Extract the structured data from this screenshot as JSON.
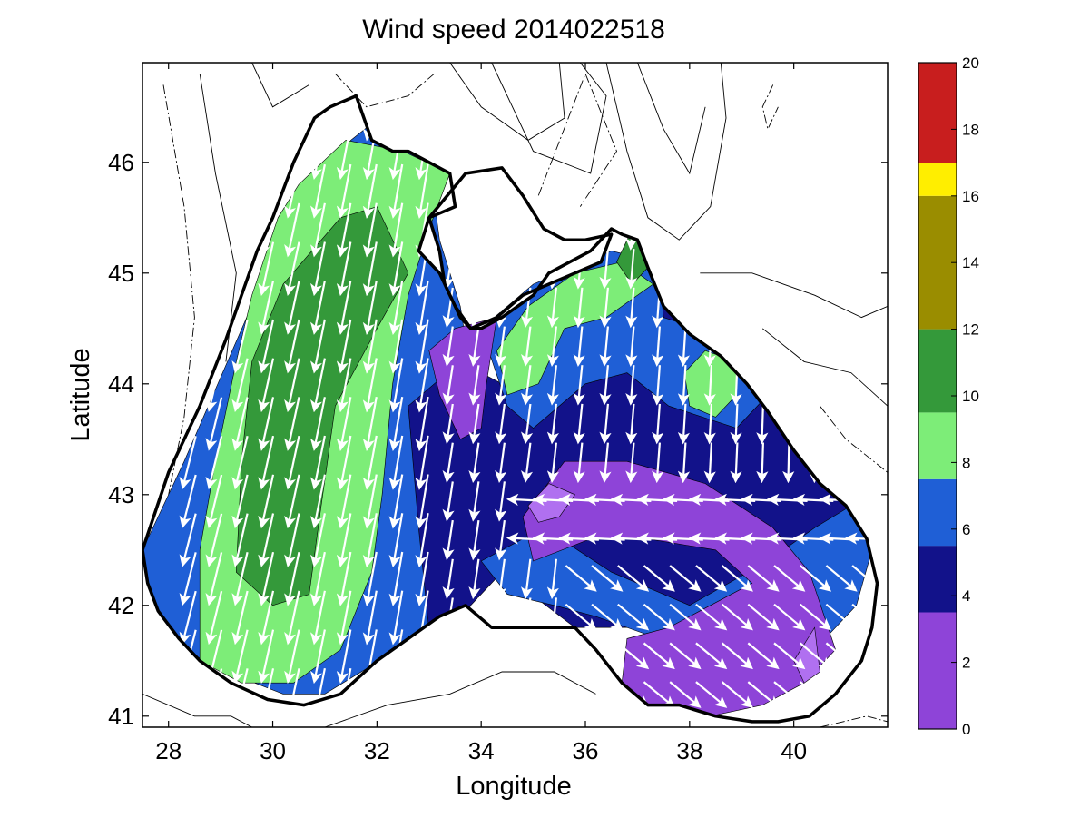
{
  "chart_data": {
    "type": "heatmap",
    "title": "Wind speed 2014022518",
    "xlabel": "Longitude",
    "ylabel": "Latitude",
    "xlim": [
      27.5,
      41.8
    ],
    "ylim": [
      40.9,
      46.9
    ],
    "x_ticks": [
      28,
      30,
      32,
      34,
      36,
      38,
      40
    ],
    "y_ticks": [
      41,
      42,
      43,
      44,
      45,
      46
    ],
    "colorbar": {
      "range": [
        0,
        20
      ],
      "ticks": [
        0,
        2,
        4,
        6,
        8,
        10,
        12,
        14,
        16,
        18,
        20
      ],
      "bands": [
        {
          "from": 0,
          "to": 3.5,
          "color": "#8e44d8"
        },
        {
          "from": 3.5,
          "to": 5.5,
          "color": "#12128a"
        },
        {
          "from": 5.5,
          "to": 7.5,
          "color": "#1f5fd6"
        },
        {
          "from": 7.5,
          "to": 9.5,
          "color": "#7ded78"
        },
        {
          "from": 9.5,
          "to": 12,
          "color": "#34993a"
        },
        {
          "from": 12,
          "to": 16,
          "color": "#9a8d00"
        },
        {
          "from": 16,
          "to": 17,
          "color": "#ffee00"
        },
        {
          "from": 17,
          "to": 20,
          "color": "#c81e1e"
        }
      ]
    },
    "regions": [
      {
        "level": "6-8",
        "color": "#1f5fd6",
        "polygon": [
          [
            27.5,
            42.5
          ],
          [
            28.3,
            43.3
          ],
          [
            29.5,
            44.6
          ],
          [
            30.5,
            45.6
          ],
          [
            31.5,
            46.2
          ],
          [
            32.3,
            46.5
          ],
          [
            33.0,
            46.0
          ],
          [
            33.2,
            45.3
          ],
          [
            33.6,
            44.7
          ],
          [
            33.8,
            44.1
          ],
          [
            33.7,
            43.2
          ],
          [
            33.5,
            42.4
          ],
          [
            33.3,
            41.9
          ],
          [
            32.4,
            41.6
          ],
          [
            31.0,
            41.2
          ],
          [
            30.2,
            41.2
          ],
          [
            29.1,
            41.4
          ],
          [
            28.3,
            41.6
          ],
          [
            27.7,
            41.9
          ]
        ]
      },
      {
        "level": "8-10",
        "color": "#7ded78",
        "polygon": [
          [
            28.6,
            41.5
          ],
          [
            28.6,
            42.5
          ],
          [
            28.9,
            43.3
          ],
          [
            29.3,
            44.2
          ],
          [
            29.6,
            44.8
          ],
          [
            30.1,
            45.5
          ],
          [
            30.5,
            45.8
          ],
          [
            31.4,
            46.2
          ],
          [
            32.5,
            46.1
          ],
          [
            33.4,
            45.9
          ],
          [
            33.0,
            45.4
          ],
          [
            32.6,
            44.8
          ],
          [
            32.3,
            44.0
          ],
          [
            32.1,
            43.0
          ],
          [
            31.9,
            42.3
          ],
          [
            31.3,
            41.6
          ],
          [
            30.4,
            41.3
          ],
          [
            29.4,
            41.3
          ]
        ]
      },
      {
        "level": "10-12",
        "color": "#34993a",
        "polygon": [
          [
            29.3,
            42.3
          ],
          [
            29.4,
            43.3
          ],
          [
            29.6,
            44.2
          ],
          [
            30.2,
            44.9
          ],
          [
            31.3,
            45.5
          ],
          [
            32.0,
            45.6
          ],
          [
            32.6,
            45.0
          ],
          [
            32.0,
            44.5
          ],
          [
            31.2,
            43.8
          ],
          [
            30.9,
            42.8
          ],
          [
            30.7,
            42.1
          ],
          [
            30.0,
            42.0
          ]
        ]
      },
      {
        "level": "4-6",
        "color": "#12128a",
        "polygon": [
          [
            32.6,
            43.8
          ],
          [
            32.8,
            42.7
          ],
          [
            33.1,
            41.3
          ],
          [
            33.8,
            42.0
          ],
          [
            34.4,
            42.3
          ],
          [
            35.8,
            41.8
          ],
          [
            37.0,
            41.8
          ],
          [
            38.5,
            42.0
          ],
          [
            40.0,
            42.2
          ],
          [
            41.2,
            42.5
          ],
          [
            41.4,
            43.0
          ],
          [
            40.2,
            43.6
          ],
          [
            39.2,
            44.3
          ],
          [
            38.1,
            44.7
          ],
          [
            36.8,
            44.8
          ],
          [
            35.9,
            44.4
          ],
          [
            35.2,
            44.4
          ],
          [
            34.4,
            44.0
          ],
          [
            33.6,
            44.2
          ]
        ]
      },
      {
        "level": "6-8",
        "color": "#1f5fd6",
        "polygon": [
          [
            34.0,
            44.5
          ],
          [
            35.0,
            44.9
          ],
          [
            36.5,
            45.2
          ],
          [
            37.4,
            45.1
          ],
          [
            37.5,
            44.6
          ],
          [
            38.8,
            44.4
          ],
          [
            39.5,
            43.9
          ],
          [
            38.9,
            43.6
          ],
          [
            37.6,
            43.8
          ],
          [
            36.8,
            44.1
          ],
          [
            36.0,
            44.0
          ],
          [
            35.0,
            43.6
          ],
          [
            34.5,
            43.8
          ]
        ]
      },
      {
        "level": "8-10",
        "color": "#7ded78",
        "polygon": [
          [
            34.3,
            44.3
          ],
          [
            34.9,
            44.7
          ],
          [
            35.8,
            45.0
          ],
          [
            36.7,
            45.1
          ],
          [
            37.3,
            44.9
          ],
          [
            36.4,
            44.6
          ],
          [
            35.6,
            44.5
          ],
          [
            35.1,
            44.0
          ],
          [
            34.5,
            43.9
          ]
        ]
      },
      {
        "level": "8-10",
        "color": "#7ded78",
        "polygon": [
          [
            37.9,
            44.1
          ],
          [
            38.3,
            44.3
          ],
          [
            38.9,
            44.2
          ],
          [
            38.9,
            43.9
          ],
          [
            38.5,
            43.7
          ],
          [
            38.0,
            43.8
          ]
        ]
      },
      {
        "level": "10-12",
        "color": "#34993a",
        "polygon": [
          [
            36.6,
            45.1
          ],
          [
            36.9,
            45.4
          ],
          [
            37.3,
            45.1
          ],
          [
            36.9,
            44.9
          ]
        ]
      },
      {
        "level": "6-8",
        "color": "#1f5fd6",
        "polygon": [
          [
            34.0,
            42.4
          ],
          [
            35.2,
            42.7
          ],
          [
            36.5,
            42.3
          ],
          [
            38.0,
            42.0
          ],
          [
            39.5,
            42.4
          ],
          [
            40.4,
            42.7
          ],
          [
            41.1,
            42.9
          ],
          [
            41.5,
            42.5
          ],
          [
            41.2,
            42.0
          ],
          [
            40.4,
            41.6
          ],
          [
            39.0,
            41.7
          ],
          [
            38.2,
            41.6
          ],
          [
            37.4,
            41.7
          ],
          [
            36.2,
            41.9
          ],
          [
            35.4,
            42.0
          ],
          [
            34.5,
            42.1
          ]
        ]
      },
      {
        "level": "2-4",
        "color": "#8e44d8",
        "polygon": [
          [
            34.8,
            42.8
          ],
          [
            35.6,
            43.3
          ],
          [
            36.8,
            43.3
          ],
          [
            38.3,
            43.1
          ],
          [
            39.6,
            42.7
          ],
          [
            40.3,
            42.3
          ],
          [
            40.8,
            41.6
          ],
          [
            40.2,
            41.3
          ],
          [
            39.4,
            41.1
          ],
          [
            38.4,
            41.0
          ],
          [
            37.2,
            41.1
          ],
          [
            36.7,
            41.3
          ],
          [
            36.8,
            41.7
          ],
          [
            37.6,
            41.8
          ],
          [
            38.4,
            42.0
          ],
          [
            39.2,
            42.2
          ],
          [
            38.5,
            42.5
          ],
          [
            37.2,
            42.6
          ],
          [
            36.1,
            42.6
          ],
          [
            35.0,
            42.4
          ]
        ]
      },
      {
        "level": "2-4",
        "color": "#8e44d8",
        "polygon": [
          [
            33.0,
            44.3
          ],
          [
            33.5,
            44.5
          ],
          [
            34.3,
            44.6
          ],
          [
            34.1,
            44.0
          ],
          [
            34.0,
            43.6
          ],
          [
            33.6,
            43.5
          ],
          [
            33.2,
            43.9
          ]
        ]
      },
      {
        "level": "0-2",
        "color": "#b070f0",
        "polygon": [
          [
            34.9,
            42.9
          ],
          [
            35.3,
            43.1
          ],
          [
            35.8,
            43.0
          ],
          [
            35.5,
            42.8
          ],
          [
            35.1,
            42.75
          ]
        ]
      },
      {
        "level": "0-2",
        "color": "#b070f0",
        "polygon": [
          [
            40.0,
            41.5
          ],
          [
            40.4,
            41.8
          ],
          [
            40.5,
            41.4
          ],
          [
            40.2,
            41.3
          ]
        ]
      }
    ],
    "coastline_sea": [
      [
        27.5,
        42.5
      ],
      [
        28.0,
        43.2
      ],
      [
        28.6,
        43.8
      ],
      [
        29.1,
        44.4
      ],
      [
        29.4,
        44.8
      ],
      [
        29.7,
        45.2
      ],
      [
        30.0,
        45.5
      ],
      [
        30.4,
        46.0
      ],
      [
        30.8,
        46.4
      ],
      [
        31.1,
        46.5
      ],
      [
        31.6,
        46.6
      ],
      [
        31.9,
        46.2
      ],
      [
        32.3,
        46.1
      ],
      [
        32.6,
        46.1
      ],
      [
        33.0,
        46.0
      ],
      [
        33.4,
        45.9
      ],
      [
        33.5,
        45.6
      ],
      [
        33.0,
        45.5
      ],
      [
        32.8,
        45.2
      ],
      [
        33.2,
        45.0
      ],
      [
        33.5,
        44.7
      ],
      [
        33.8,
        44.5
      ],
      [
        34.0,
        44.5
      ],
      [
        34.4,
        44.6
      ],
      [
        35.0,
        44.8
      ],
      [
        35.3,
        45.0
      ],
      [
        35.7,
        45.1
      ],
      [
        36.1,
        45.2
      ],
      [
        36.5,
        45.4
      ],
      [
        36.7,
        45.35
      ],
      [
        37.0,
        45.3
      ],
      [
        37.2,
        45.05
      ],
      [
        37.5,
        44.7
      ],
      [
        38.0,
        44.45
      ],
      [
        38.6,
        44.25
      ],
      [
        39.1,
        44.0
      ],
      [
        39.5,
        43.75
      ],
      [
        40.0,
        43.4
      ],
      [
        40.5,
        43.1
      ],
      [
        41.0,
        42.9
      ],
      [
        41.4,
        42.6
      ],
      [
        41.6,
        42.2
      ],
      [
        41.5,
        41.8
      ],
      [
        41.3,
        41.5
      ],
      [
        40.8,
        41.2
      ],
      [
        40.3,
        41.0
      ],
      [
        39.7,
        40.95
      ],
      [
        39.2,
        40.95
      ],
      [
        38.5,
        41.0
      ],
      [
        37.8,
        41.1
      ],
      [
        37.2,
        41.1
      ],
      [
        36.7,
        41.3
      ],
      [
        36.2,
        41.6
      ],
      [
        35.8,
        41.8
      ],
      [
        35.3,
        41.8
      ],
      [
        34.8,
        41.8
      ],
      [
        34.2,
        41.8
      ],
      [
        33.7,
        42.0
      ],
      [
        33.2,
        41.9
      ],
      [
        32.6,
        41.7
      ],
      [
        32.0,
        41.5
      ],
      [
        31.3,
        41.2
      ],
      [
        30.6,
        41.1
      ],
      [
        29.9,
        41.15
      ],
      [
        29.2,
        41.3
      ],
      [
        28.6,
        41.5
      ],
      [
        28.2,
        41.7
      ],
      [
        27.8,
        41.95
      ],
      [
        27.6,
        42.2
      ]
    ],
    "crimea_land": [
      [
        33.0,
        45.5
      ],
      [
        33.7,
        45.9
      ],
      [
        34.4,
        45.95
      ],
      [
        34.8,
        45.7
      ],
      [
        35.2,
        45.4
      ],
      [
        35.6,
        45.3
      ],
      [
        36.0,
        45.3
      ],
      [
        36.5,
        45.35
      ],
      [
        36.3,
        45.1
      ],
      [
        35.8,
        45.0
      ],
      [
        35.3,
        44.9
      ],
      [
        34.8,
        44.8
      ],
      [
        34.3,
        44.6
      ],
      [
        33.8,
        44.5
      ],
      [
        33.6,
        44.6
      ],
      [
        33.3,
        44.9
      ],
      [
        33.2,
        45.2
      ]
    ],
    "wind_vectors": {
      "grid_lon_start": 28.4,
      "grid_lon_step": 0.5,
      "grid_lat_start": 41.2,
      "grid_lat_step": 0.35
    }
  }
}
